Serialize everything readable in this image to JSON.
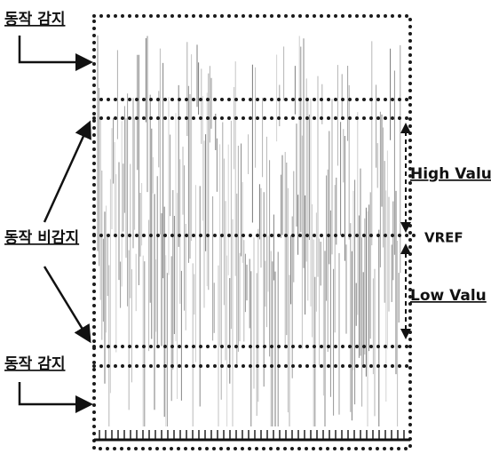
{
  "left_labels": [
    "동작 감지",
    "동작 비감지",
    "동작 감지"
  ],
  "right_labels": [
    "High Valu",
    "VREF",
    "Low Valu"
  ]
}
